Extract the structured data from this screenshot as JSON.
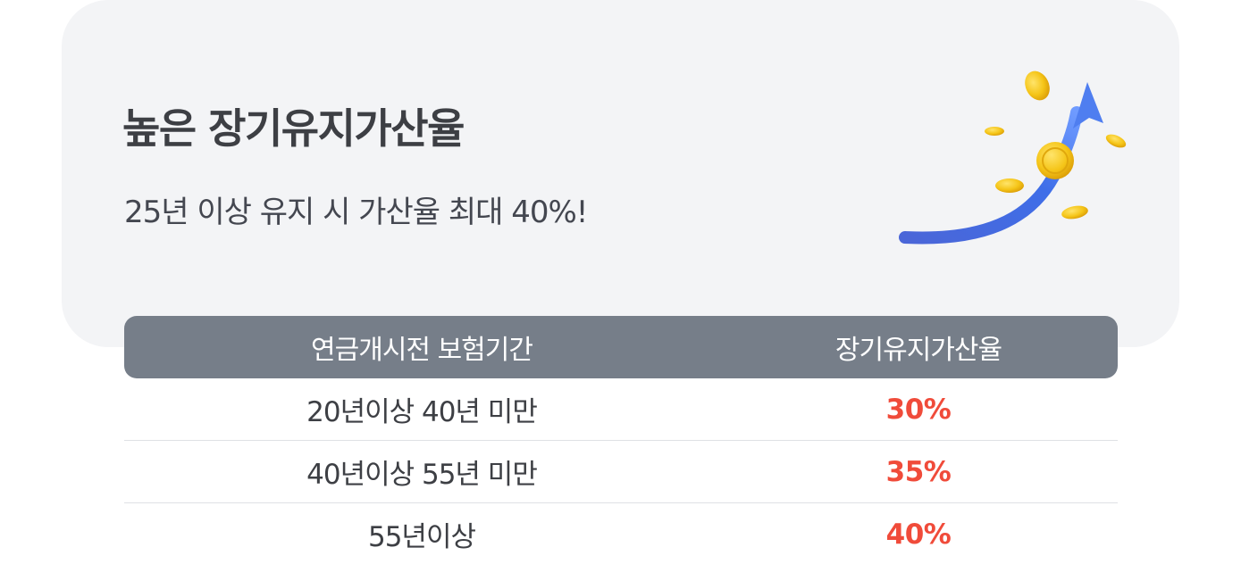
{
  "hero": {
    "title": "높은 장기유지가산율",
    "subtitle": "25년 이상 유지 시 가산율 최대 40%!",
    "illustration": "rising-arrow-with-gold-coins-icon"
  },
  "table": {
    "headers": {
      "period": "연금개시전 보험기간",
      "rate": "장기유지가산율"
    },
    "rows": [
      {
        "period": "20년이상 40년 미만",
        "rate": "30%"
      },
      {
        "period": "40년이상 55년 미만",
        "rate": "35%"
      },
      {
        "period": "55년이상",
        "rate": "40%"
      }
    ]
  },
  "colors": {
    "card_background": "#f3f4f6",
    "header_background": "#767e89",
    "rate_accent": "#f04b3a",
    "arrow_blue": "#3f6ee8",
    "coin_gold": "#f5c518"
  }
}
